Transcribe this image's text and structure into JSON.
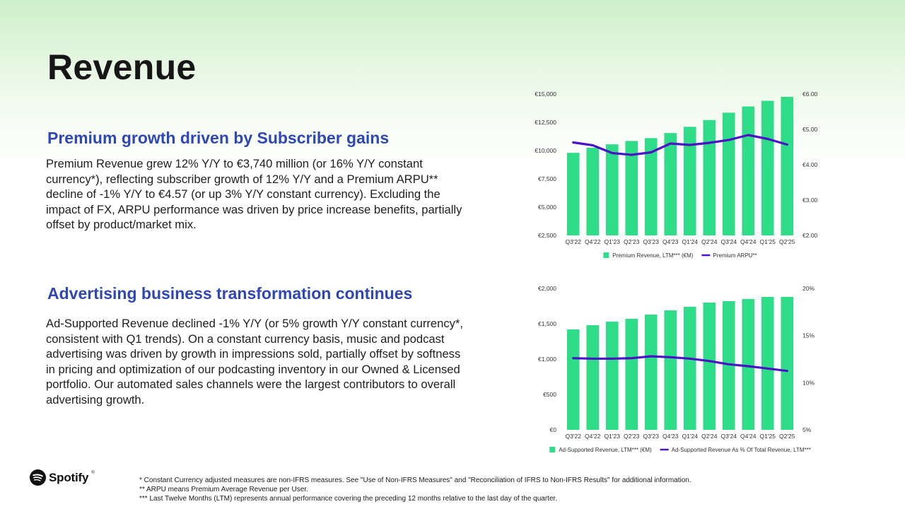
{
  "title": "Revenue",
  "premium": {
    "heading": "Premium growth driven by Subscriber gains",
    "body": "Premium Revenue grew 12% Y/Y to €3,740 million (or 16% Y/Y constant currency*), reflecting subscriber growth of 12% Y/Y and a Premium ARPU** decline of -1% Y/Y to €4.57 (or up 3% Y/Y constant currency). Excluding the impact of FX, ARPU performance was driven by price increase benefits, partially offset by product/market mix."
  },
  "advertising": {
    "heading": "Advertising business transformation continues",
    "body": "Ad-Supported Revenue declined -1% Y/Y (or 5% growth Y/Y constant currency*, consistent with Q1 trends). On a constant currency basis, music and podcast advertising was driven by growth in impressions sold, partially offset by softness in pricing and optimization of our podcasting inventory in our Owned & Licensed portfolio. Our automated sales channels were the largest contributors to overall advertising growth."
  },
  "chart_data": [
    {
      "type": "bar",
      "name": "premium",
      "categories": [
        "Q3'22",
        "Q4'22",
        "Q1'23",
        "Q2'23",
        "Q3'23",
        "Q4'23",
        "Q1'24",
        "Q2'24",
        "Q3'24",
        "Q4'24",
        "Q1'25",
        "Q2'25"
      ],
      "series": [
        {
          "name": "Premium Revenue, LTM*** (€M)",
          "type": "bar",
          "axis": "left",
          "values": [
            9800,
            10250,
            10550,
            10850,
            11100,
            11550,
            12100,
            12700,
            13350,
            13900,
            14400,
            14750
          ]
        },
        {
          "name": "Premium ARPU**",
          "type": "line",
          "axis": "right",
          "values": [
            4.63,
            4.55,
            4.33,
            4.28,
            4.35,
            4.6,
            4.56,
            4.62,
            4.7,
            4.84,
            4.73,
            4.57
          ]
        }
      ],
      "yleft": {
        "min": 2500,
        "max": 15000,
        "ticks": [
          "€15,000",
          "€12,500",
          "€10,000",
          "€7,500",
          "€5,000",
          "€2,500"
        ]
      },
      "yright": {
        "min": 2,
        "max": 6,
        "ticks": [
          "€6.00",
          "€5.00",
          "€4.00",
          "€3.00",
          "€2.00"
        ]
      },
      "colors": {
        "bar": "#2fdc87",
        "line": "#4b12c7"
      },
      "legend_position": "bottom"
    },
    {
      "type": "bar",
      "name": "ads",
      "categories": [
        "Q3'22",
        "Q4'22",
        "Q1'23",
        "Q2'23",
        "Q3'23",
        "Q4'23",
        "Q1'24",
        "Q2'24",
        "Q3'24",
        "Q4'24",
        "Q1'25",
        "Q2'25"
      ],
      "series": [
        {
          "name": "Ad-Supported Revenue, LTM*** (€M)",
          "type": "bar",
          "axis": "left",
          "values": [
            1420,
            1480,
            1530,
            1570,
            1630,
            1690,
            1740,
            1800,
            1820,
            1850,
            1880,
            1880
          ]
        },
        {
          "name": "Ad-Supported Revenue As % Of Total Revenue, LTM***",
          "type": "line",
          "axis": "right",
          "values": [
            12.6,
            12.55,
            12.55,
            12.6,
            12.8,
            12.7,
            12.55,
            12.3,
            11.95,
            11.75,
            11.5,
            11.25
          ]
        }
      ],
      "yleft": {
        "min": 0,
        "max": 2000,
        "ticks": [
          "€2,000",
          "€1,500",
          "€1,000",
          "€500",
          "€0"
        ]
      },
      "yright": {
        "min": 5,
        "max": 20,
        "ticks": [
          "20%",
          "15%",
          "10%",
          "5%"
        ]
      },
      "colors": {
        "bar": "#2fdc87",
        "line": "#4b12c7"
      },
      "legend_position": "bottom"
    }
  ],
  "logo": {
    "word": "Spotify",
    "mark": "®"
  },
  "footnotes": [
    "* Constant Currency adjusted measures are non-IFRS measures. See \"Use of Non-IFRS Measures\" and \"Reconciliation of IFRS to Non-IFRS Results\" for additional information.",
    "** ARPU means Premium Average Revenue per User.",
    "*** Last Twelve Months (LTM) represents annual performance covering the preceding 12 months relative to the last day of the quarter."
  ]
}
